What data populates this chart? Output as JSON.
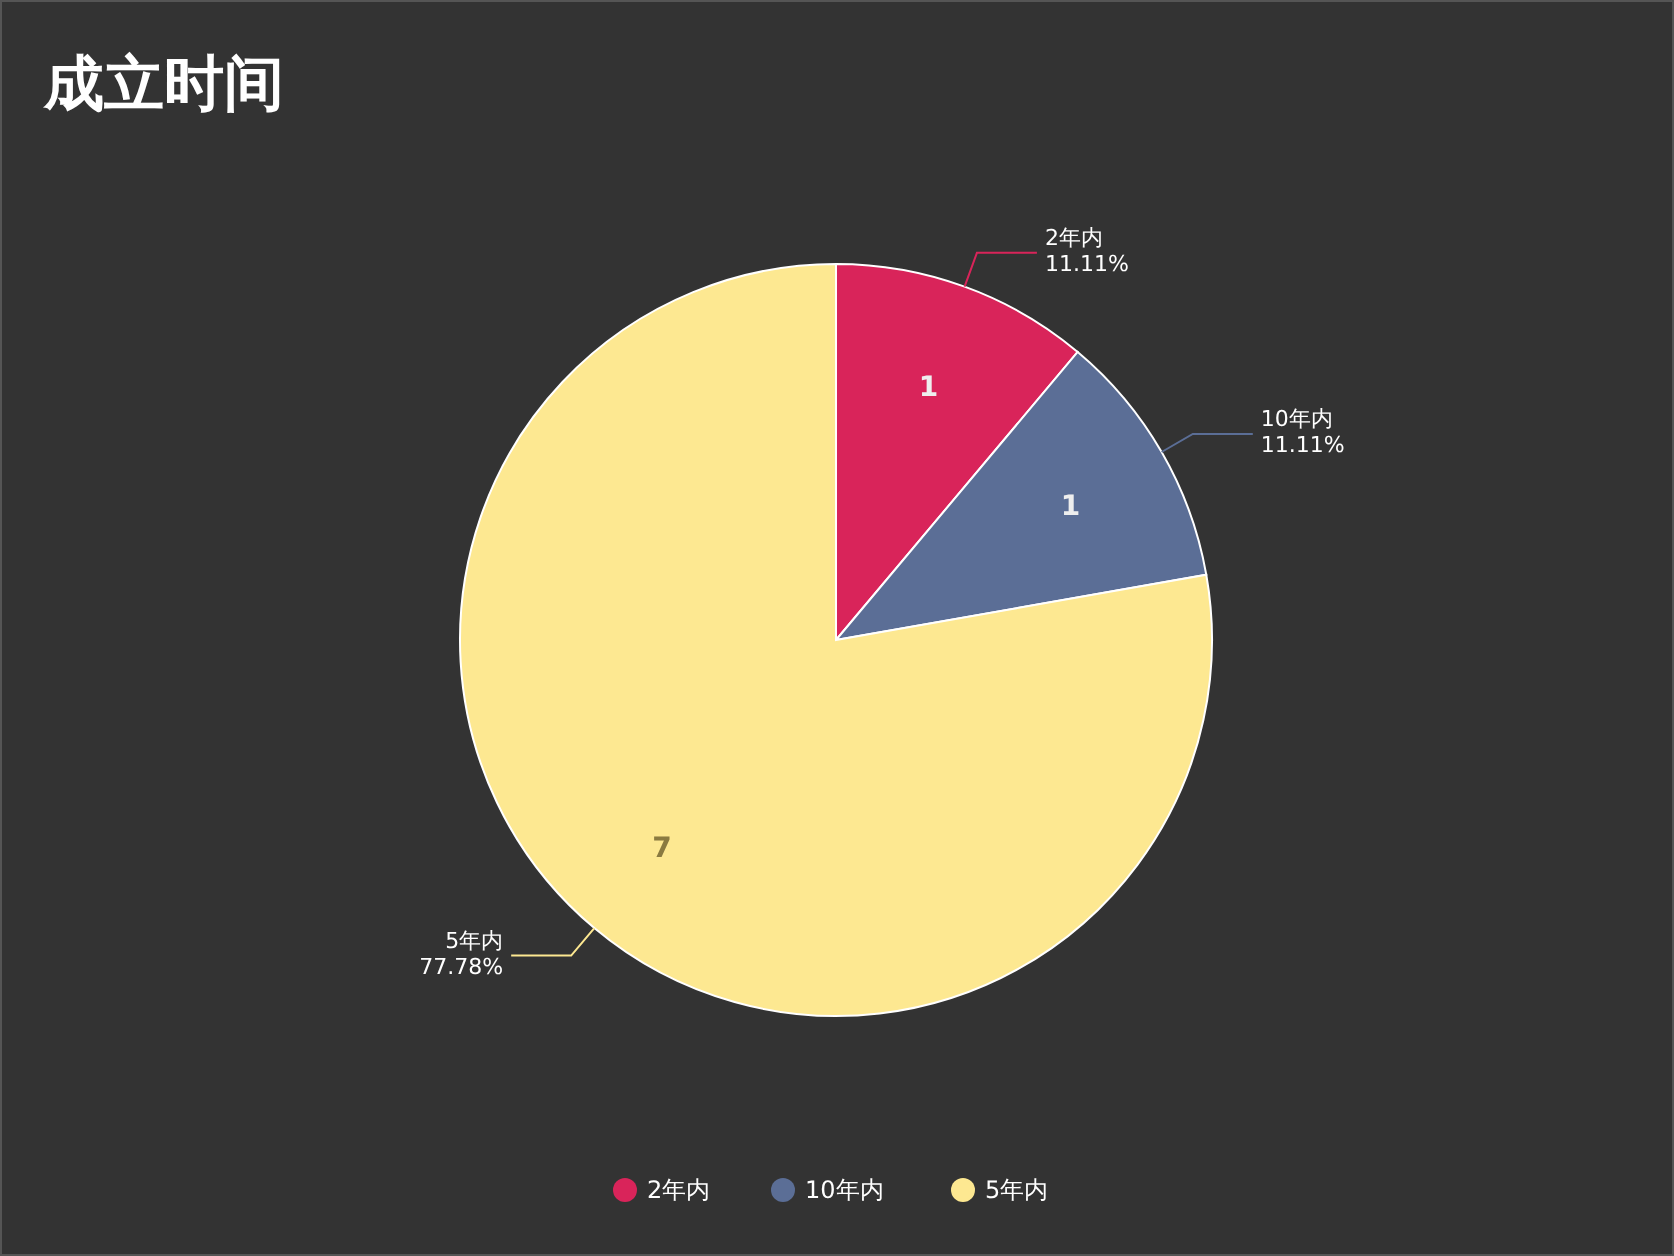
{
  "chart_data": {
    "type": "pie",
    "title": "成立时间",
    "categories": [
      "2年内",
      "10年内",
      "5年内"
    ],
    "values": [
      1,
      1,
      7
    ],
    "data_labels": true,
    "colors": [
      "#d9245a",
      "#5b6e96",
      "#fde891"
    ],
    "annotations": [
      "11.11%",
      "11.11%",
      "77.78%"
    ],
    "legend": "bottom"
  }
}
